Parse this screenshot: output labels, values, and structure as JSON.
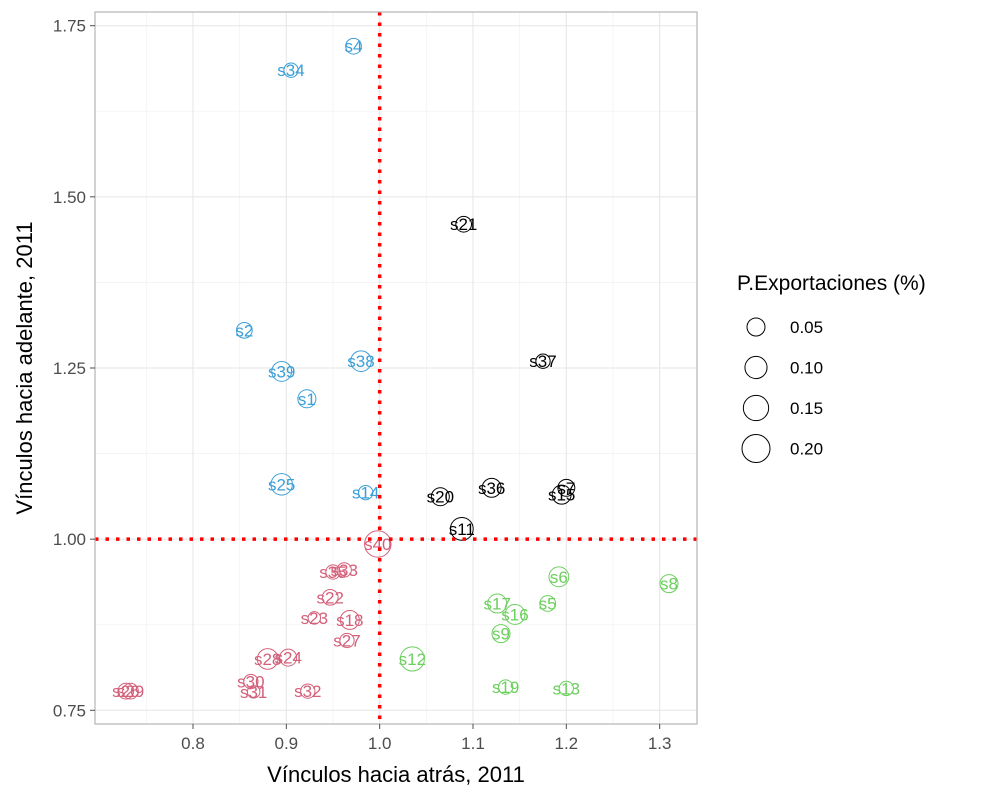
{
  "chart_data": {
    "type": "scatter",
    "xlabel": "Vínculos hacia atrás, 2011",
    "ylabel": "Vínculos hacia adelante, 2011",
    "xlim": [
      0.695,
      1.34
    ],
    "ylim": [
      0.73,
      1.77
    ],
    "x_ticks": [
      0.8,
      0.9,
      1.0,
      1.1,
      1.2,
      1.3
    ],
    "x_tick_labels": [
      "0.8",
      "0.9",
      "1.0",
      "1.1",
      "1.2",
      "1.3"
    ],
    "y_ticks": [
      0.75,
      1.0,
      1.25,
      1.5,
      1.75
    ],
    "y_tick_labels": [
      "0.75",
      "1.00",
      "1.25",
      "1.50",
      "1.75"
    ],
    "grid": true,
    "reference_lines": {
      "x": 1.0,
      "y": 1.0,
      "color": "#ff0000",
      "style": "dotted"
    },
    "legend": {
      "title": "P.Exportaciones (%)",
      "placement": "right",
      "entries": [
        {
          "label": "0.05",
          "value": 0.05
        },
        {
          "label": "0.10",
          "value": 0.1
        },
        {
          "label": "0.15",
          "value": 0.15
        },
        {
          "label": "0.20",
          "value": 0.2
        }
      ]
    },
    "group_colors": {
      "blue": "#3b9fd8",
      "black": "#000000",
      "red": "#d4607a",
      "green": "#6ccf5e"
    },
    "points": [
      {
        "label": "s4",
        "x": 0.972,
        "y": 1.72,
        "size": 0.03,
        "group": "blue"
      },
      {
        "label": "s34",
        "x": 0.905,
        "y": 1.685,
        "size": 0.02,
        "group": "blue"
      },
      {
        "label": "s2",
        "x": 0.855,
        "y": 1.305,
        "size": 0.03,
        "group": "blue"
      },
      {
        "label": "s38",
        "x": 0.98,
        "y": 1.26,
        "size": 0.08,
        "group": "blue"
      },
      {
        "label": "s39",
        "x": 0.895,
        "y": 1.245,
        "size": 0.07,
        "group": "blue"
      },
      {
        "label": "s1",
        "x": 0.922,
        "y": 1.205,
        "size": 0.05,
        "group": "blue"
      },
      {
        "label": "s25",
        "x": 0.895,
        "y": 1.08,
        "size": 0.09,
        "group": "blue"
      },
      {
        "label": "s14",
        "x": 0.985,
        "y": 1.068,
        "size": 0.02,
        "group": "blue"
      },
      {
        "label": "s21",
        "x": 1.09,
        "y": 1.46,
        "size": 0.03,
        "group": "black"
      },
      {
        "label": "s37",
        "x": 1.175,
        "y": 1.26,
        "size": 0.02,
        "group": "black"
      },
      {
        "label": "s36",
        "x": 1.12,
        "y": 1.075,
        "size": 0.06,
        "group": "black"
      },
      {
        "label": "s7",
        "x": 1.2,
        "y": 1.075,
        "size": 0.04,
        "group": "black"
      },
      {
        "label": "s20",
        "x": 1.065,
        "y": 1.062,
        "size": 0.05,
        "group": "black"
      },
      {
        "label": "s15",
        "x": 1.195,
        "y": 1.065,
        "size": 0.06,
        "group": "black"
      },
      {
        "label": "s11",
        "x": 1.088,
        "y": 1.015,
        "size": 0.11,
        "group": "black"
      },
      {
        "label": "s40",
        "x": 0.998,
        "y": 0.993,
        "size": 0.17,
        "group": "red"
      },
      {
        "label": "s35",
        "x": 0.95,
        "y": 0.952,
        "size": 0.02,
        "group": "red"
      },
      {
        "label": "s33",
        "x": 0.962,
        "y": 0.955,
        "size": 0.02,
        "group": "red"
      },
      {
        "label": "s22",
        "x": 0.947,
        "y": 0.915,
        "size": 0.03,
        "group": "red"
      },
      {
        "label": "s23",
        "x": 0.93,
        "y": 0.885,
        "size": 0.01,
        "group": "red"
      },
      {
        "label": "s18",
        "x": 0.968,
        "y": 0.882,
        "size": 0.06,
        "group": "red"
      },
      {
        "label": "s27",
        "x": 0.965,
        "y": 0.852,
        "size": 0.02,
        "group": "red"
      },
      {
        "label": "s28",
        "x": 0.88,
        "y": 0.825,
        "size": 0.08,
        "group": "red"
      },
      {
        "label": "s24",
        "x": 0.902,
        "y": 0.827,
        "size": 0.04,
        "group": "red"
      },
      {
        "label": "s30",
        "x": 0.862,
        "y": 0.792,
        "size": 0.02,
        "group": "red"
      },
      {
        "label": "s31",
        "x": 0.865,
        "y": 0.777,
        "size": 0.01,
        "group": "red"
      },
      {
        "label": "s32",
        "x": 0.923,
        "y": 0.778,
        "size": 0.02,
        "group": "red"
      },
      {
        "label": "s26",
        "x": 0.728,
        "y": 0.778,
        "size": 0.03,
        "group": "red"
      },
      {
        "label": "s29",
        "x": 0.733,
        "y": 0.778,
        "size": 0.03,
        "group": "red"
      },
      {
        "label": "s8",
        "x": 1.31,
        "y": 0.935,
        "size": 0.05,
        "group": "green"
      },
      {
        "label": "s6",
        "x": 1.192,
        "y": 0.945,
        "size": 0.07,
        "group": "green"
      },
      {
        "label": "s17",
        "x": 1.126,
        "y": 0.906,
        "size": 0.06,
        "group": "green"
      },
      {
        "label": "s5",
        "x": 1.18,
        "y": 0.906,
        "size": 0.03,
        "group": "green"
      },
      {
        "label": "s16",
        "x": 1.145,
        "y": 0.89,
        "size": 0.07,
        "group": "green"
      },
      {
        "label": "s9",
        "x": 1.13,
        "y": 0.862,
        "size": 0.05,
        "group": "green"
      },
      {
        "label": "s12",
        "x": 1.035,
        "y": 0.825,
        "size": 0.13,
        "group": "green"
      },
      {
        "label": "s19",
        "x": 1.135,
        "y": 0.784,
        "size": 0.02,
        "group": "green"
      },
      {
        "label": "s13",
        "x": 1.2,
        "y": 0.782,
        "size": 0.02,
        "group": "green"
      }
    ]
  }
}
